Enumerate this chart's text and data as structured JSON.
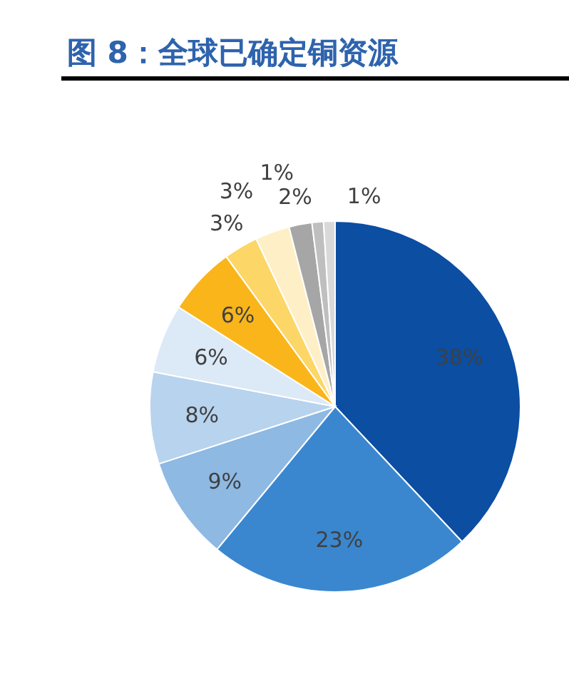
{
  "chart_data": {
    "type": "pie",
    "title": "图 8：全球已确定铜资源",
    "categories": [
      null,
      null,
      null,
      null,
      null,
      null,
      null,
      null,
      null,
      null,
      null
    ],
    "values": [
      38,
      23,
      9,
      8,
      6,
      6,
      3,
      3,
      2,
      1,
      1
    ],
    "value_labels": [
      "38%",
      "23%",
      "9%",
      "8%",
      "6%",
      "6%",
      "3%",
      "3%",
      "2%",
      "1%",
      "1%"
    ],
    "colors": [
      "#0b4ea2",
      "#3a87d0",
      "#8db9e3",
      "#b7d3ee",
      "#dce9f6",
      "#f9b51a",
      "#fdd668",
      "#feefc6",
      "#a6a6a6",
      "#bfbfbf",
      "#d9d9d9"
    ]
  }
}
